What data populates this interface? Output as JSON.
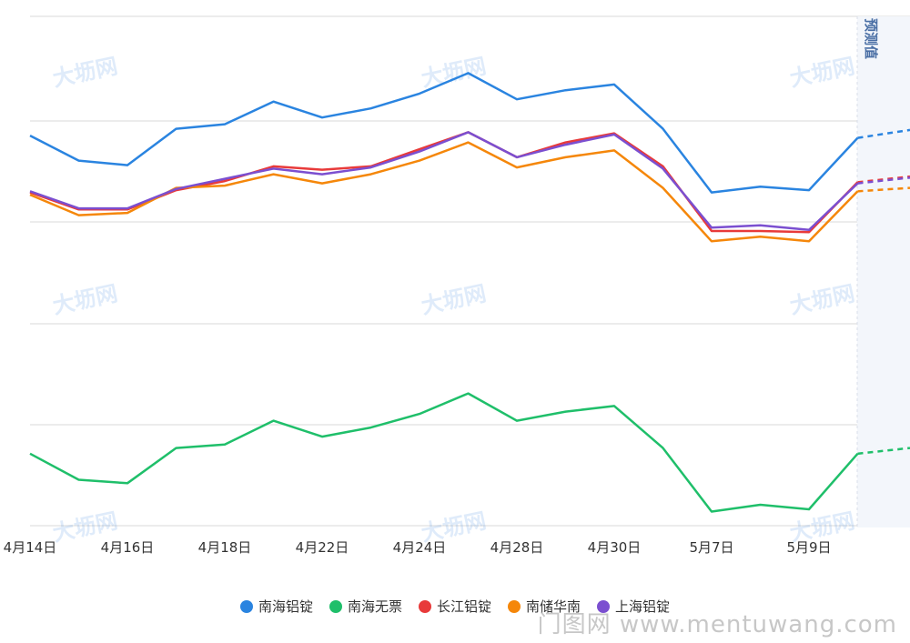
{
  "chart_data": {
    "type": "line",
    "categories": [
      "4月14日",
      "",
      "4月16日",
      "",
      "4月18日",
      "",
      "4月22日",
      "",
      "4月24日",
      "",
      "4月28日",
      "",
      "4月30日",
      "",
      "5月7日",
      "",
      "5月9日",
      ""
    ],
    "forecast_label": "预测值",
    "series": [
      {
        "name": "南海铝锭",
        "color": "#2a84e0",
        "values": [
          18.45,
          18.23,
          18.19,
          18.51,
          18.55,
          18.75,
          18.61,
          18.69,
          18.82,
          19.0,
          18.77,
          18.85,
          18.9,
          18.51,
          17.95,
          18.0,
          17.97,
          18.43
        ],
        "forecast": 18.5
      },
      {
        "name": "南海无票",
        "color": "#1fbf6a",
        "values": [
          15.65,
          15.42,
          15.39,
          15.7,
          15.73,
          15.94,
          15.8,
          15.88,
          16.0,
          16.18,
          15.94,
          16.02,
          16.07,
          15.7,
          15.14,
          15.2,
          15.16,
          15.65
        ],
        "forecast": 15.7
      },
      {
        "name": "长江铝锭",
        "color": "#e83a3a",
        "values": [
          17.95,
          17.8,
          17.8,
          17.97,
          18.05,
          18.18,
          18.15,
          18.18,
          18.33,
          18.48,
          18.26,
          18.39,
          18.47,
          18.18,
          17.61,
          17.61,
          17.6,
          18.04
        ],
        "forecast": 18.09
      },
      {
        "name": "南储华南",
        "color": "#f5870a",
        "values": [
          17.93,
          17.75,
          17.77,
          17.99,
          18.01,
          18.11,
          18.03,
          18.11,
          18.23,
          18.39,
          18.17,
          18.26,
          18.32,
          17.99,
          17.52,
          17.56,
          17.52,
          17.96
        ],
        "forecast": 17.99
      },
      {
        "name": "上海铝锭",
        "color": "#7b4fd0",
        "values": [
          17.96,
          17.81,
          17.81,
          17.98,
          18.07,
          18.16,
          18.11,
          18.17,
          18.31,
          18.48,
          18.26,
          18.37,
          18.46,
          18.16,
          17.64,
          17.66,
          17.62,
          18.03
        ],
        "forecast": 18.08
      }
    ],
    "ylim": [
      15.0,
      19.5
    ],
    "grid": true,
    "legend_position": "bottom"
  },
  "watermark": {
    "logo_text": "大坜网",
    "corner_text": "门图网 www.mentuwang.com"
  }
}
